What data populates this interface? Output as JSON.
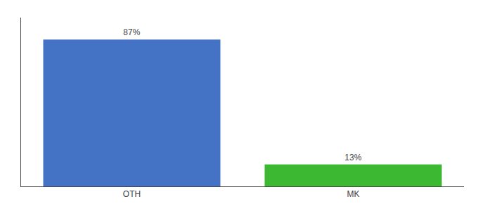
{
  "chart_data": {
    "type": "bar",
    "categories": [
      "OTH",
      "MK"
    ],
    "values": [
      87,
      13
    ],
    "value_labels": [
      "87%",
      "13%"
    ],
    "colors": [
      "#4472c4",
      "#3db832"
    ],
    "ylim": [
      0,
      100
    ],
    "data_labels": true,
    "tick_labels": "x",
    "grid": false
  }
}
